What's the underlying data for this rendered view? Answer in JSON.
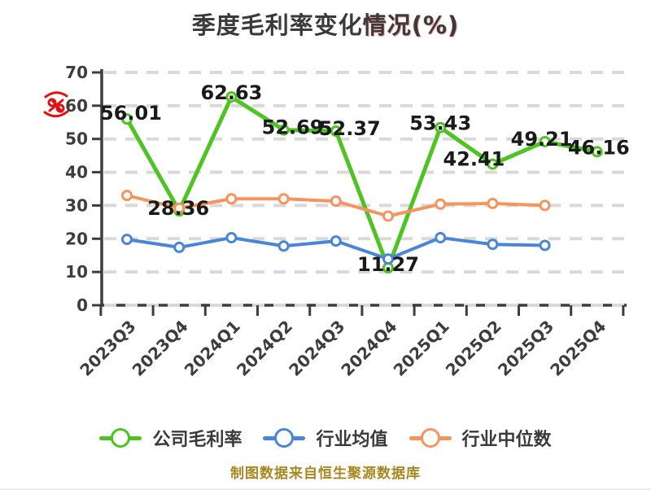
{
  "title": {
    "prefix": "季度毛利率变化",
    "suffix": "情况(%)"
  },
  "watermark": {
    "color": "#DE1212"
  },
  "chart_data": {
    "type": "line",
    "title": "季度毛利率变化情况(%)",
    "categories": [
      "2023Q3",
      "2023Q4",
      "2024Q1",
      "2024Q2",
      "2024Q3",
      "2024Q4",
      "2025Q1",
      "2025Q2",
      "2025Q3",
      "2025Q4"
    ],
    "series": [
      {
        "name": "公司毛利率",
        "color": "#4EC321",
        "values": [
          56.01,
          28.36,
          62.63,
          52.69,
          52.37,
          11.27,
          53.43,
          42.41,
          49.21,
          46.16
        ],
        "data_labels": true
      },
      {
        "name": "行业均值",
        "color": "#4A86D8",
        "values": [
          19.8,
          17.4,
          20.3,
          17.8,
          19.3,
          13.9,
          20.3,
          18.3,
          18.0,
          null
        ],
        "data_labels": false
      },
      {
        "name": "行业中位数",
        "color": "#F4945F",
        "values": [
          33.0,
          29.2,
          32.0,
          32.0,
          31.3,
          26.8,
          30.4,
          30.6,
          30.0,
          null
        ],
        "data_labels": false
      }
    ],
    "ylim": [
      0,
      70
    ],
    "yticks": [
      0,
      10,
      20,
      30,
      40,
      50,
      60,
      70
    ],
    "grid": {
      "horizontal": true,
      "style": "dashed",
      "color": "#D9D9D9"
    },
    "axis_color": "#3D3D3D",
    "x_label_rotation": 45,
    "legend_position": "bottom"
  },
  "footer": {
    "text": "制图数据来自恒生聚源数据库",
    "color": "#A8871F"
  }
}
